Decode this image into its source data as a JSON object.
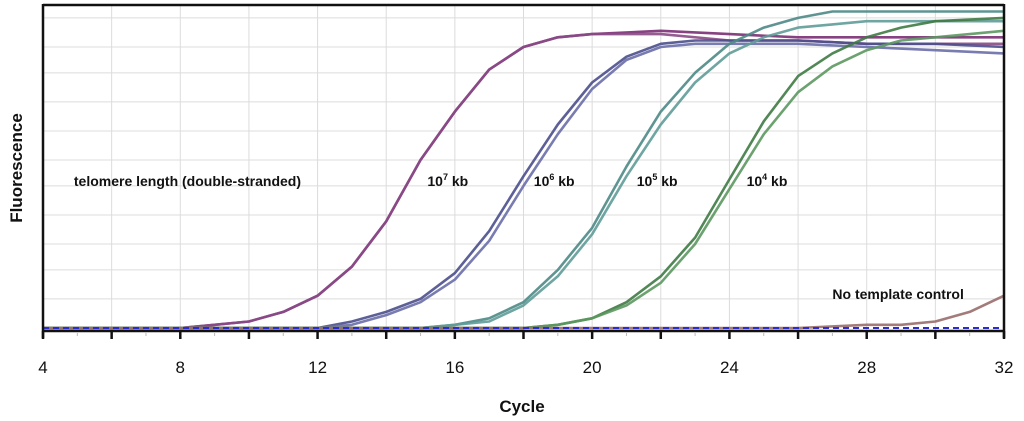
{
  "chart_data": {
    "type": "line",
    "title": "",
    "xlabel": "Cycle",
    "ylabel": "Fluorescence",
    "xlim": [
      4,
      32
    ],
    "ylim": [
      0,
      1
    ],
    "x_ticks": [
      4,
      8,
      12,
      16,
      20,
      24,
      28,
      32
    ],
    "x_minor_ticks": [
      6,
      10,
      14,
      18,
      22,
      26,
      30
    ],
    "y_ticks_labeled": false,
    "y_gridlines": [
      0.09,
      0.18,
      0.26,
      0.35,
      0.44,
      0.52,
      0.61,
      0.7,
      0.79,
      0.87,
      0.96
    ],
    "grid": true,
    "legend": "none",
    "series_note": "Fluorescence values are normalized (0 = baseline, 1 = top of plot); y-axis has no numeric labels.",
    "series": [
      {
        "name": "10^7 kb replicate 1",
        "group": "1e7",
        "color": "#7a2e73",
        "x": [
          4,
          6,
          8,
          9,
          10,
          11,
          12,
          13,
          14,
          15,
          16,
          17,
          18,
          19,
          20,
          22,
          24,
          26,
          28,
          30,
          32
        ],
        "y": [
          0.0,
          0.0,
          0.0,
          0.01,
          0.02,
          0.05,
          0.1,
          0.19,
          0.33,
          0.52,
          0.67,
          0.8,
          0.87,
          0.9,
          0.91,
          0.92,
          0.91,
          0.9,
          0.9,
          0.9,
          0.9
        ]
      },
      {
        "name": "10^7 kb replicate 2",
        "group": "1e7",
        "color": "#8a4a86",
        "x": [
          4,
          6,
          8,
          9,
          10,
          11,
          12,
          13,
          14,
          15,
          16,
          17,
          18,
          19,
          20,
          22,
          24,
          26,
          28,
          30,
          32
        ],
        "y": [
          0.0,
          0.0,
          0.0,
          0.01,
          0.02,
          0.05,
          0.1,
          0.19,
          0.33,
          0.52,
          0.67,
          0.8,
          0.87,
          0.9,
          0.91,
          0.91,
          0.89,
          0.89,
          0.88,
          0.88,
          0.88
        ]
      },
      {
        "name": "10^6 kb replicate 1",
        "group": "1e6",
        "color": "#4b4f8c",
        "x": [
          4,
          8,
          12,
          13,
          14,
          15,
          16,
          17,
          18,
          19,
          20,
          21,
          22,
          23,
          24,
          26,
          28,
          30,
          32
        ],
        "y": [
          0.0,
          0.0,
          0.0,
          0.02,
          0.05,
          0.09,
          0.17,
          0.3,
          0.47,
          0.63,
          0.76,
          0.84,
          0.88,
          0.89,
          0.89,
          0.89,
          0.88,
          0.88,
          0.87
        ]
      },
      {
        "name": "10^6 kb replicate 2",
        "group": "1e6",
        "color": "#6a6ea8",
        "x": [
          4,
          8,
          12,
          13,
          14,
          15,
          16,
          17,
          18,
          19,
          20,
          21,
          22,
          23,
          24,
          26,
          28,
          30,
          32
        ],
        "y": [
          0.0,
          0.0,
          0.0,
          0.01,
          0.04,
          0.08,
          0.15,
          0.27,
          0.44,
          0.6,
          0.74,
          0.83,
          0.87,
          0.88,
          0.88,
          0.88,
          0.87,
          0.86,
          0.85
        ]
      },
      {
        "name": "10^5 kb replicate 1",
        "group": "1e5",
        "color": "#4d8a86",
        "x": [
          4,
          12,
          15,
          16,
          17,
          18,
          19,
          20,
          21,
          22,
          23,
          24,
          25,
          26,
          27,
          28,
          30,
          32
        ],
        "y": [
          0.0,
          0.0,
          0.0,
          0.01,
          0.03,
          0.08,
          0.18,
          0.31,
          0.5,
          0.67,
          0.79,
          0.88,
          0.93,
          0.96,
          0.98,
          0.98,
          0.98,
          0.98
        ]
      },
      {
        "name": "10^5 kb replicate 2",
        "group": "1e5",
        "color": "#5f9c98",
        "x": [
          4,
          12,
          15,
          16,
          17,
          18,
          19,
          20,
          21,
          22,
          23,
          24,
          25,
          26,
          27,
          28,
          30,
          32
        ],
        "y": [
          0.0,
          0.0,
          0.0,
          0.01,
          0.02,
          0.07,
          0.16,
          0.29,
          0.47,
          0.63,
          0.76,
          0.85,
          0.9,
          0.93,
          0.94,
          0.95,
          0.95,
          0.95
        ]
      },
      {
        "name": "10^4 kb replicate 1",
        "group": "1e4",
        "color": "#3f7a44",
        "x": [
          4,
          16,
          18,
          19,
          20,
          21,
          22,
          23,
          24,
          25,
          26,
          27,
          28,
          29,
          30,
          32
        ],
        "y": [
          0.0,
          0.0,
          0.0,
          0.01,
          0.03,
          0.08,
          0.16,
          0.28,
          0.46,
          0.64,
          0.78,
          0.85,
          0.9,
          0.93,
          0.95,
          0.96
        ]
      },
      {
        "name": "10^4 kb replicate 2",
        "group": "1e4",
        "color": "#5c985f",
        "x": [
          4,
          16,
          18,
          19,
          20,
          21,
          22,
          23,
          24,
          25,
          26,
          27,
          28,
          29,
          30,
          32
        ],
        "y": [
          0.0,
          0.0,
          0.0,
          0.01,
          0.03,
          0.07,
          0.14,
          0.26,
          0.43,
          0.6,
          0.73,
          0.81,
          0.86,
          0.89,
          0.9,
          0.92
        ]
      },
      {
        "name": "No template control",
        "group": "ntc",
        "color": "#9a6d6d",
        "x": [
          4,
          26,
          28,
          29,
          30,
          31,
          32
        ],
        "y": [
          0.0,
          0.0,
          0.01,
          0.01,
          0.02,
          0.05,
          0.1
        ]
      },
      {
        "name": "Baseline threshold",
        "group": "threshold",
        "color": "#2b2bd6",
        "dashed": true,
        "x": [
          4,
          32
        ],
        "y": [
          0.0,
          0.0
        ]
      }
    ],
    "annotations": [
      {
        "text": "telomere length (double-stranded)",
        "x": 4.9,
        "y": 0.44
      },
      {
        "base": "10",
        "sup": "7",
        "suffix": " kb",
        "x": 15.2,
        "y": 0.44
      },
      {
        "base": "10",
        "sup": "6",
        "suffix": " kb",
        "x": 18.3,
        "y": 0.44
      },
      {
        "base": "10",
        "sup": "5",
        "suffix": " kb",
        "x": 21.3,
        "y": 0.44
      },
      {
        "base": "10",
        "sup": "4",
        "suffix": " kb",
        "x": 24.5,
        "y": 0.44
      },
      {
        "text": "No template control",
        "x": 27.0,
        "y": 0.09
      }
    ]
  }
}
